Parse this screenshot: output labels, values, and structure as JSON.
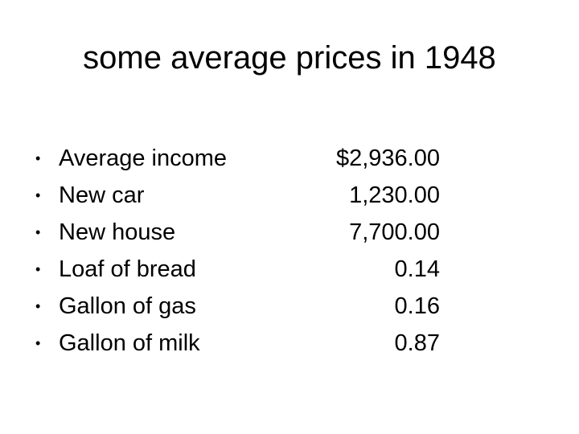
{
  "slide": {
    "title": "some average prices in 1948",
    "items": [
      {
        "bullet": "•",
        "label": "Average income",
        "value": "$2,936.00"
      },
      {
        "bullet": "•",
        "label": "New car",
        "value": "1,230.00"
      },
      {
        "bullet": "•",
        "label": "New house",
        "value": "7,700.00"
      },
      {
        "bullet": "•",
        "label": "Loaf of bread",
        "value": "0.14"
      },
      {
        "bullet": "•",
        "label": "Gallon of gas",
        "value": "0.16"
      },
      {
        "bullet": "•",
        "label": "Gallon of milk",
        "value": "0.87"
      }
    ]
  }
}
